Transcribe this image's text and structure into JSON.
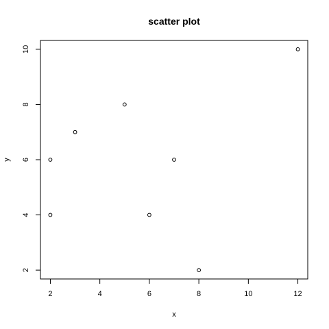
{
  "chart_data": {
    "type": "scatter",
    "title": "scatter plot",
    "xlabel": "x",
    "ylabel": "y",
    "xlim": [
      1.6,
      12.4
    ],
    "ylim": [
      1.68,
      10.32
    ],
    "xticks": [
      2,
      4,
      6,
      8,
      10,
      12
    ],
    "yticks": [
      2,
      4,
      6,
      8,
      10
    ],
    "x": [
      2,
      2,
      3,
      5,
      6,
      7,
      8,
      12
    ],
    "y": [
      4,
      6,
      7,
      8,
      4,
      6,
      2,
      10
    ],
    "grid": false,
    "legend": "none",
    "marker": "open-circle",
    "colors": {
      "background": "#ffffff",
      "foreground": "#000000"
    }
  }
}
